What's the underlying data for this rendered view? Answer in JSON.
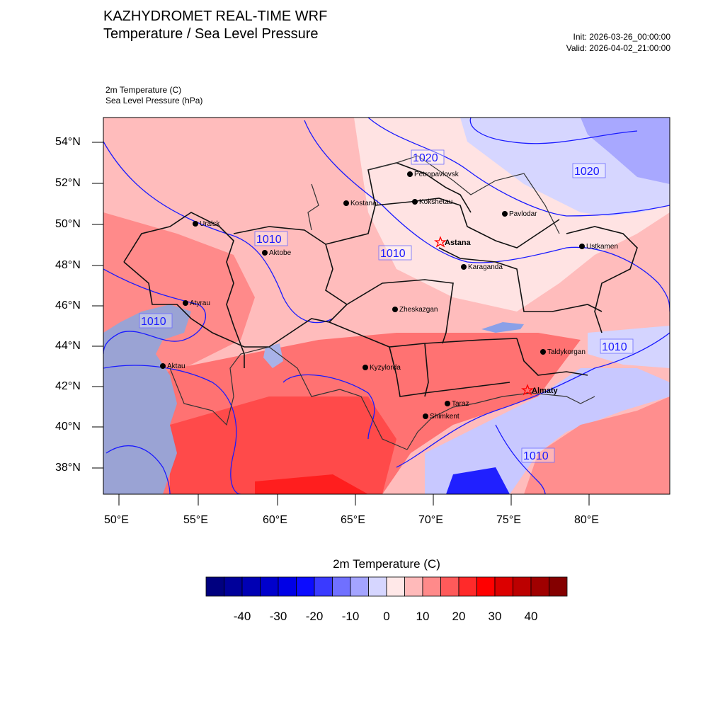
{
  "header": {
    "title": "KAZHYDROMET REAL-TIME WRF",
    "subtitle": "Temperature / Sea Level Pressure",
    "init": "Init: 2026-03-26_00:00:00",
    "valid": "Valid: 2026-04-02_21:00:00"
  },
  "fields": {
    "field1": "2m Temperature   (C)",
    "field2": "Sea Level Pressure   (hPa)"
  },
  "axes": {
    "lat_labels": [
      "54°N",
      "52°N",
      "50°N",
      "48°N",
      "46°N",
      "44°N",
      "42°N",
      "40°N",
      "38°N"
    ],
    "lon_labels": [
      "50°E",
      "55°E",
      "60°E",
      "65°E",
      "70°E",
      "75°E",
      "80°E"
    ]
  },
  "cities": [
    {
      "name": "Petropavlovsk"
    },
    {
      "name": "Kostanai"
    },
    {
      "name": "Kokshetau"
    },
    {
      "name": "Pavlodar"
    },
    {
      "name": "Uralsk"
    },
    {
      "name": "Aktobe"
    },
    {
      "name": "Astana"
    },
    {
      "name": "Ustkamen"
    },
    {
      "name": "Karaganda"
    },
    {
      "name": "Atyrau"
    },
    {
      "name": "Zheskazgan"
    },
    {
      "name": "Taldykorgan"
    },
    {
      "name": "Kyzylorda"
    },
    {
      "name": "Aktau"
    },
    {
      "name": "Almaty"
    },
    {
      "name": "Taraz"
    },
    {
      "name": "Shimkent"
    }
  ],
  "isobars": [
    "1020",
    "1020",
    "1010",
    "1010",
    "1010",
    "1010",
    "1010"
  ],
  "colorbar": {
    "title": "2m Temperature  (C)",
    "labels": [
      "-40",
      "-30",
      "-20",
      "-10",
      "0",
      "10",
      "20",
      "30",
      "40"
    ],
    "colors": [
      "#00007f",
      "#00009a",
      "#0000b4",
      "#0000cc",
      "#0000e6",
      "#0c0cff",
      "#3a3aff",
      "#7070ff",
      "#a4a4ff",
      "#d6d6ff",
      "#ffe8e8",
      "#ffbaba",
      "#ff8a8a",
      "#ff5a5a",
      "#ff2a2a",
      "#ff0000",
      "#dc0000",
      "#bc0000",
      "#a00000",
      "#840000"
    ]
  },
  "colors": {
    "sea": "#9aa3d4",
    "isobar": "#1a1aff"
  }
}
